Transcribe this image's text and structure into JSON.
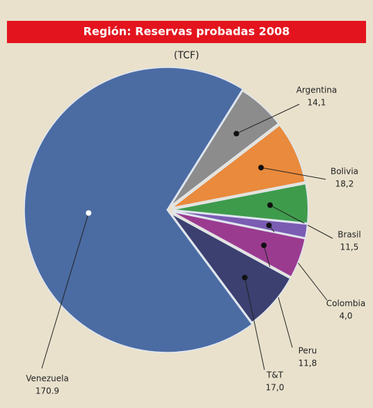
{
  "chart_data": {
    "type": "pie",
    "title": "Región: Reservas probadas 2008",
    "subtitle": "(TCF)",
    "categories": [
      "Argentina",
      "Bolivia",
      "Brasil",
      "Colombia",
      "Peru",
      "T&T",
      "Venezuela"
    ],
    "values": [
      14.1,
      18.2,
      11.5,
      4.0,
      11.8,
      17.0,
      170.9
    ],
    "value_labels": [
      "14,1",
      "18,2",
      "11,5",
      "4,0",
      "11,8",
      "17,0",
      "170.9"
    ],
    "colors": [
      "#8c8c8c",
      "#e98a3c",
      "#3f9b4c",
      "#7a5cb3",
      "#9b3b90",
      "#3b4070",
      "#4b6ba3"
    ]
  }
}
